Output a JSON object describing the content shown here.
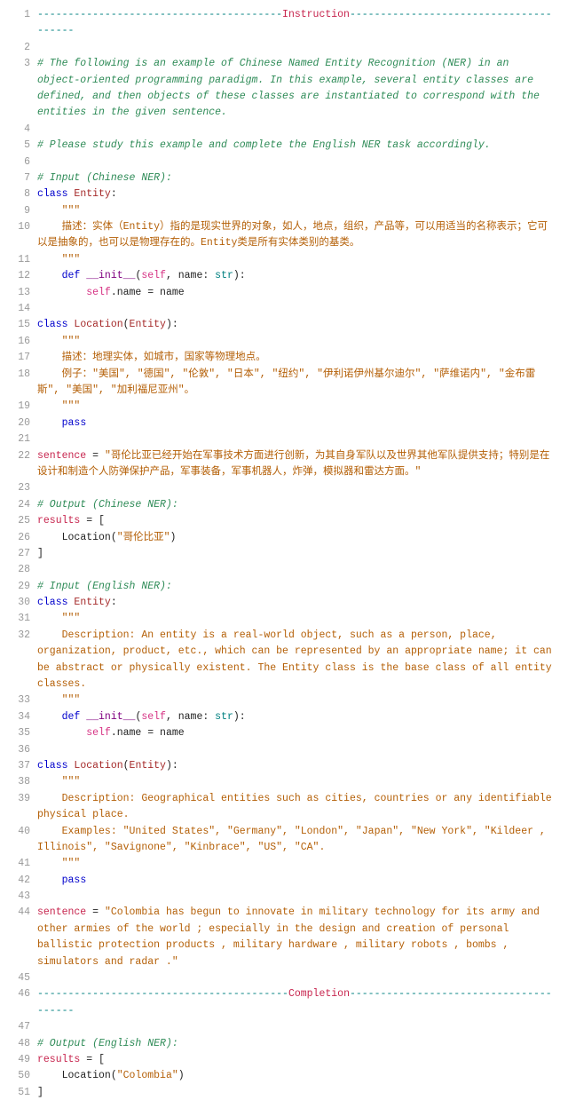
{
  "lines": [
    {
      "n": 1,
      "segs": [
        {
          "t": "----------------------------------------",
          "c": "c-teal"
        },
        {
          "t": "Instruction",
          "c": "c-red"
        },
        {
          "t": "---------------------------------------",
          "c": "c-teal"
        }
      ]
    },
    {
      "n": 2,
      "segs": []
    },
    {
      "n": 3,
      "segs": [
        {
          "t": "# The following is an example of Chinese Named Entity Recognition (NER) in an object-oriented programming paradigm. In this example, several entity classes are defined, and then objects of these classes are instantiated to correspond with the entities in the given sentence.",
          "c": "c-green"
        }
      ]
    },
    {
      "n": 4,
      "segs": []
    },
    {
      "n": 5,
      "segs": [
        {
          "t": "# Please study this example and complete the English NER task accordingly.",
          "c": "c-green"
        }
      ]
    },
    {
      "n": 6,
      "segs": []
    },
    {
      "n": 7,
      "segs": [
        {
          "t": "# Input (Chinese NER):",
          "c": "c-green"
        }
      ]
    },
    {
      "n": 8,
      "segs": [
        {
          "t": "class ",
          "c": "c-blue"
        },
        {
          "t": "Entity",
          "c": "c-darkred"
        },
        {
          "t": ":",
          "c": "c-black"
        }
      ]
    },
    {
      "n": 9,
      "segs": [
        {
          "t": "    \"\"\"",
          "c": "c-orange"
        }
      ]
    },
    {
      "n": 10,
      "segs": [
        {
          "t": "    描述：实体（Entity）指的是现实世界的对象，如人，地点，组织，产品等，可以用适当的名称表示；它可以是抽象的，也可以是物理存在的。Entity类是所有实体类别的基类。",
          "c": "c-orange"
        }
      ]
    },
    {
      "n": 11,
      "segs": [
        {
          "t": "    \"\"\"",
          "c": "c-orange"
        }
      ]
    },
    {
      "n": 12,
      "segs": [
        {
          "t": "    ",
          "c": "c-black"
        },
        {
          "t": "def ",
          "c": "c-blue"
        },
        {
          "t": "__init__",
          "c": "c-purple"
        },
        {
          "t": "(",
          "c": "c-black"
        },
        {
          "t": "self",
          "c": "c-pink"
        },
        {
          "t": ", name: ",
          "c": "c-black"
        },
        {
          "t": "str",
          "c": "c-teal"
        },
        {
          "t": "):",
          "c": "c-black"
        }
      ]
    },
    {
      "n": 13,
      "segs": [
        {
          "t": "        ",
          "c": "c-black"
        },
        {
          "t": "self",
          "c": "c-pink"
        },
        {
          "t": ".name = name",
          "c": "c-black"
        }
      ]
    },
    {
      "n": 14,
      "segs": []
    },
    {
      "n": 15,
      "segs": [
        {
          "t": "class ",
          "c": "c-blue"
        },
        {
          "t": "Location",
          "c": "c-darkred"
        },
        {
          "t": "(",
          "c": "c-black"
        },
        {
          "t": "Entity",
          "c": "c-darkred"
        },
        {
          "t": "):",
          "c": "c-black"
        }
      ]
    },
    {
      "n": 16,
      "segs": [
        {
          "t": "    \"\"\"",
          "c": "c-orange"
        }
      ]
    },
    {
      "n": 17,
      "segs": [
        {
          "t": "    描述：地理实体，如城市，国家等物理地点。",
          "c": "c-orange"
        }
      ]
    },
    {
      "n": 18,
      "segs": [
        {
          "t": "    例子：\"美国\", \"德国\", \"伦敦\", \"日本\", \"纽约\", \"伊利诺伊州基尔迪尔\", \"萨维诺内\", \"金布雷斯\", \"美国\", \"加利福尼亚州\"。",
          "c": "c-orange"
        }
      ]
    },
    {
      "n": 19,
      "segs": [
        {
          "t": "    \"\"\"",
          "c": "c-orange"
        }
      ]
    },
    {
      "n": 20,
      "segs": [
        {
          "t": "    ",
          "c": "c-black"
        },
        {
          "t": "pass",
          "c": "c-blue"
        }
      ]
    },
    {
      "n": 21,
      "segs": []
    },
    {
      "n": 22,
      "segs": [
        {
          "t": "sentence ",
          "c": "c-red"
        },
        {
          "t": "= ",
          "c": "c-black"
        },
        {
          "t": "\"哥伦比亚已经开始在军事技术方面进行创新，为其自身军队以及世界其他军队提供支持；特别是在设计和制造个人防弹保护产品，军事装备，军事机器人，炸弹，模拟器和雷达方面。\"",
          "c": "c-orange"
        }
      ]
    },
    {
      "n": 23,
      "segs": []
    },
    {
      "n": 24,
      "segs": [
        {
          "t": "# Output (Chinese NER):",
          "c": "c-green"
        }
      ]
    },
    {
      "n": 25,
      "segs": [
        {
          "t": "results ",
          "c": "c-red"
        },
        {
          "t": "= [",
          "c": "c-black"
        }
      ]
    },
    {
      "n": 26,
      "segs": [
        {
          "t": "    Location(",
          "c": "c-black"
        },
        {
          "t": "\"哥伦比亚\"",
          "c": "c-orange"
        },
        {
          "t": ")",
          "c": "c-black"
        }
      ]
    },
    {
      "n": 27,
      "segs": [
        {
          "t": "]",
          "c": "c-black"
        }
      ]
    },
    {
      "n": 28,
      "segs": []
    },
    {
      "n": 29,
      "segs": [
        {
          "t": "# Input (English NER):",
          "c": "c-green"
        }
      ]
    },
    {
      "n": 30,
      "segs": [
        {
          "t": "class ",
          "c": "c-blue"
        },
        {
          "t": "Entity",
          "c": "c-darkred"
        },
        {
          "t": ":",
          "c": "c-black"
        }
      ]
    },
    {
      "n": 31,
      "segs": [
        {
          "t": "    \"\"\"",
          "c": "c-orange"
        }
      ]
    },
    {
      "n": 32,
      "segs": [
        {
          "t": "    Description: An entity is a real-world object, such as a person, place, organization, product, etc., which can be represented by an appropriate name; it can be abstract or physically existent. The Entity class is the base class of all entity classes.",
          "c": "c-orange"
        }
      ]
    },
    {
      "n": 33,
      "segs": [
        {
          "t": "    \"\"\"",
          "c": "c-orange"
        }
      ]
    },
    {
      "n": 34,
      "segs": [
        {
          "t": "    ",
          "c": "c-black"
        },
        {
          "t": "def ",
          "c": "c-blue"
        },
        {
          "t": "__init__",
          "c": "c-purple"
        },
        {
          "t": "(",
          "c": "c-black"
        },
        {
          "t": "self",
          "c": "c-pink"
        },
        {
          "t": ", name: ",
          "c": "c-black"
        },
        {
          "t": "str",
          "c": "c-teal"
        },
        {
          "t": "):",
          "c": "c-black"
        }
      ]
    },
    {
      "n": 35,
      "segs": [
        {
          "t": "        ",
          "c": "c-black"
        },
        {
          "t": "self",
          "c": "c-pink"
        },
        {
          "t": ".name = name",
          "c": "c-black"
        }
      ]
    },
    {
      "n": 36,
      "segs": []
    },
    {
      "n": 37,
      "segs": [
        {
          "t": "class ",
          "c": "c-blue"
        },
        {
          "t": "Location",
          "c": "c-darkred"
        },
        {
          "t": "(",
          "c": "c-black"
        },
        {
          "t": "Entity",
          "c": "c-darkred"
        },
        {
          "t": "):",
          "c": "c-black"
        }
      ]
    },
    {
      "n": 38,
      "segs": [
        {
          "t": "    \"\"\"",
          "c": "c-orange"
        }
      ]
    },
    {
      "n": 39,
      "segs": [
        {
          "t": "    Description: Geographical entities such as cities, countries or any identifiable physical place.",
          "c": "c-orange"
        }
      ]
    },
    {
      "n": 40,
      "segs": [
        {
          "t": "    Examples: \"United States\", \"Germany\", \"London\", \"Japan\", \"New York\", \"Kildeer , Illinois\", \"Savignone\", \"Kinbrace\", \"US\", \"CA\".",
          "c": "c-orange"
        }
      ]
    },
    {
      "n": 41,
      "segs": [
        {
          "t": "    \"\"\"",
          "c": "c-orange"
        }
      ]
    },
    {
      "n": 42,
      "segs": [
        {
          "t": "    ",
          "c": "c-black"
        },
        {
          "t": "pass",
          "c": "c-blue"
        }
      ]
    },
    {
      "n": 43,
      "segs": []
    },
    {
      "n": 44,
      "segs": [
        {
          "t": "sentence ",
          "c": "c-red"
        },
        {
          "t": "= ",
          "c": "c-black"
        },
        {
          "t": "\"Colombia has begun to innovate in military technology for its army and other armies of the world ; especially in the design and creation of personal ballistic protection products , military hardware , military robots , bombs , simulators and radar .\"",
          "c": "c-orange"
        }
      ]
    },
    {
      "n": 45,
      "segs": []
    },
    {
      "n": 46,
      "segs": [
        {
          "t": "-----------------------------------------",
          "c": "c-teal"
        },
        {
          "t": "Completion",
          "c": "c-red"
        },
        {
          "t": "---------------------------------------",
          "c": "c-teal"
        }
      ]
    },
    {
      "n": 47,
      "segs": []
    },
    {
      "n": 48,
      "segs": [
        {
          "t": "# Output (English NER):",
          "c": "c-green"
        }
      ]
    },
    {
      "n": 49,
      "segs": [
        {
          "t": "results ",
          "c": "c-red"
        },
        {
          "t": "= [",
          "c": "c-black"
        }
      ]
    },
    {
      "n": 50,
      "segs": [
        {
          "t": "    Location(",
          "c": "c-black"
        },
        {
          "t": "\"Colombia\"",
          "c": "c-orange"
        },
        {
          "t": ")",
          "c": "c-black"
        }
      ]
    },
    {
      "n": 51,
      "segs": [
        {
          "t": "]",
          "c": "c-black"
        }
      ]
    }
  ]
}
